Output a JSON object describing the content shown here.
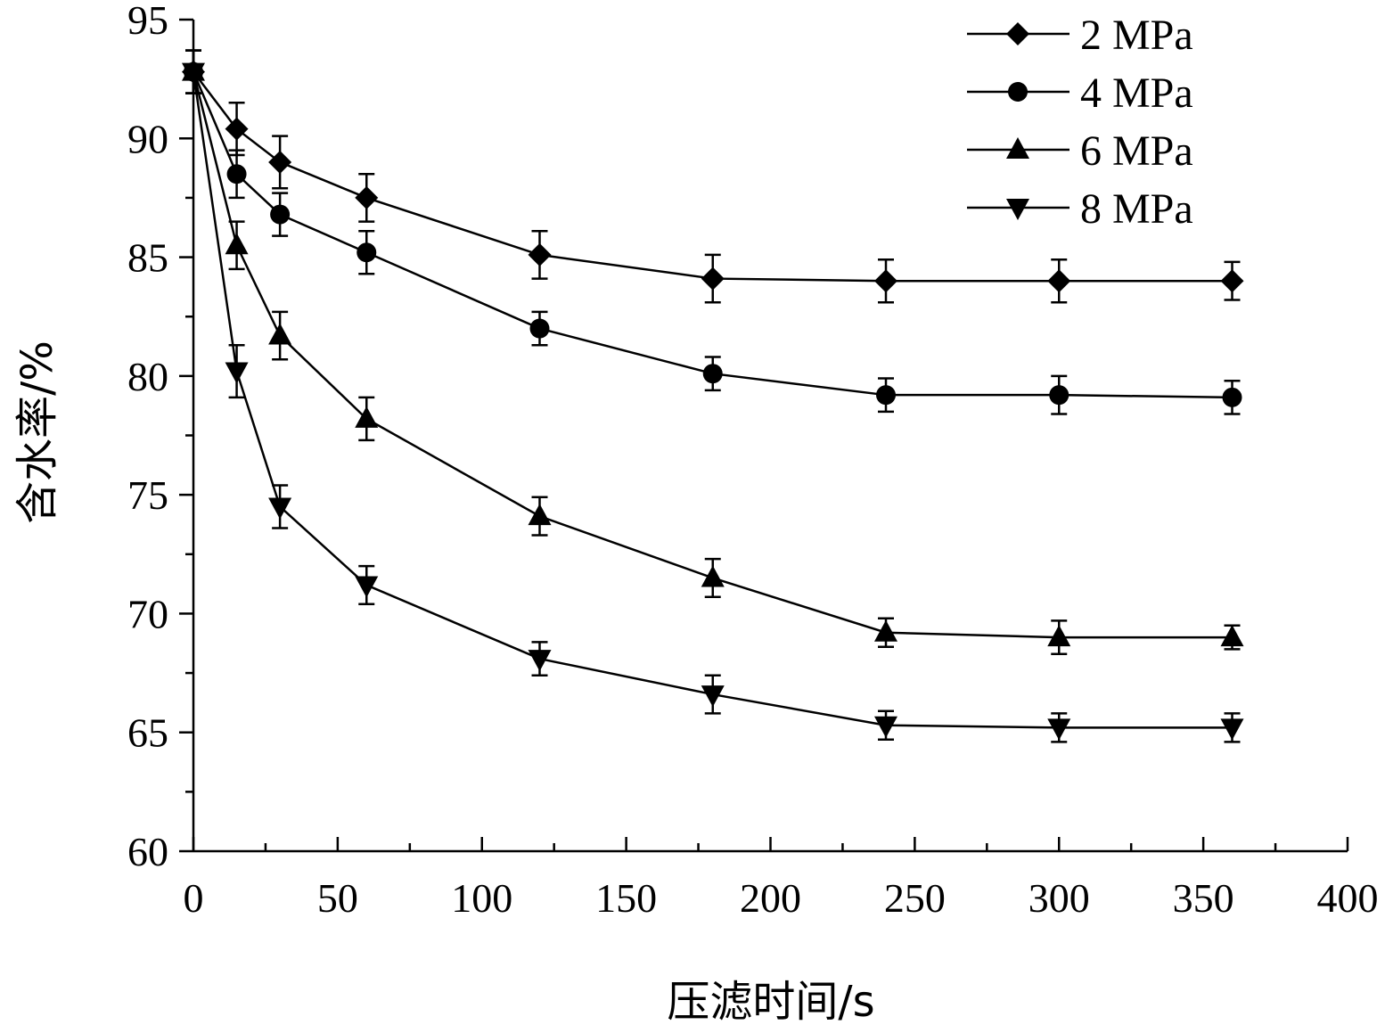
{
  "chart_data": {
    "type": "line",
    "title": "",
    "xlabel": "压滤时间/s",
    "ylabel": "含水率/%",
    "xlim": [
      0,
      400
    ],
    "ylim": [
      60,
      95
    ],
    "xticks": [
      0,
      50,
      100,
      150,
      200,
      250,
      300,
      350,
      400
    ],
    "yticks": [
      60,
      65,
      70,
      75,
      80,
      85,
      90,
      95
    ],
    "grid": false,
    "legend_position": "top-right",
    "error_bars": true,
    "x": [
      0,
      15,
      30,
      60,
      120,
      180,
      240,
      300,
      360
    ],
    "series": [
      {
        "name": "2 MPa",
        "marker": "diamond",
        "values": [
          92.8,
          90.4,
          89.0,
          87.5,
          85.1,
          84.1,
          84.0,
          84.0,
          84.0
        ],
        "errors": [
          0.9,
          1.1,
          1.1,
          1.0,
          1.0,
          1.0,
          0.9,
          0.9,
          0.8
        ]
      },
      {
        "name": "4 MPa",
        "marker": "circle",
        "values": [
          92.8,
          88.5,
          86.8,
          85.2,
          82.0,
          80.1,
          79.2,
          79.2,
          79.1
        ],
        "errors": [
          0.9,
          1.0,
          0.9,
          0.9,
          0.7,
          0.7,
          0.7,
          0.8,
          0.7
        ]
      },
      {
        "name": "6 MPa",
        "marker": "triangle-up",
        "values": [
          92.8,
          85.5,
          81.7,
          78.2,
          74.1,
          71.5,
          69.2,
          69.0,
          69.0
        ],
        "errors": [
          0.9,
          1.0,
          1.0,
          0.9,
          0.8,
          0.8,
          0.6,
          0.7,
          0.5
        ]
      },
      {
        "name": "8 MPa",
        "marker": "triangle-down",
        "values": [
          92.8,
          80.2,
          74.5,
          71.2,
          68.1,
          66.6,
          65.3,
          65.2,
          65.2
        ],
        "errors": [
          0.9,
          1.1,
          0.9,
          0.8,
          0.7,
          0.8,
          0.6,
          0.6,
          0.6
        ]
      }
    ]
  }
}
